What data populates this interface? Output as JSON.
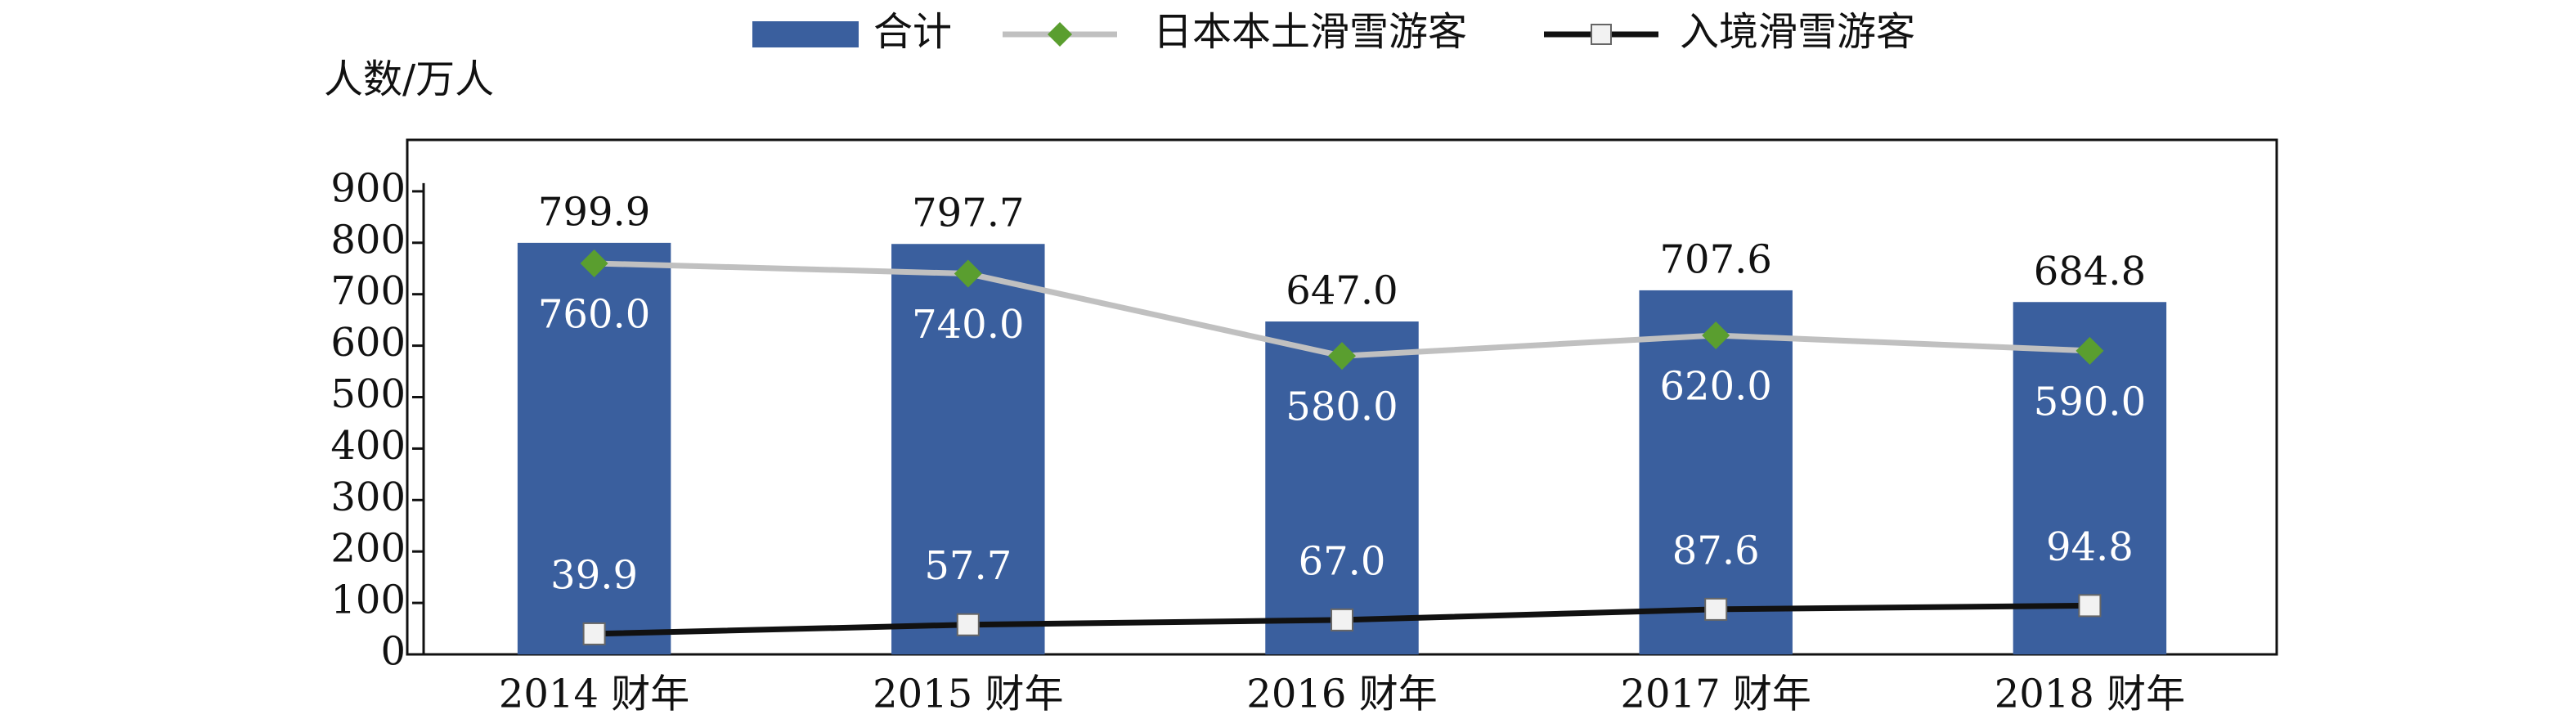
{
  "chart_data": {
    "type": "bar-line",
    "y_label": "人数/万人",
    "categories": [
      "2014 财年",
      "2015 财年",
      "2016 财年",
      "2017 财年",
      "2018 财年"
    ],
    "ylim": [
      0,
      1000
    ],
    "yticks": [
      0,
      100,
      200,
      300,
      400,
      500,
      600,
      700,
      800,
      900
    ],
    "legend": "top",
    "series": [
      {
        "name": "合计",
        "type": "bar",
        "color": "#3a5f9e",
        "values": [
          799.9,
          797.7,
          647.0,
          707.6,
          684.8
        ],
        "value_labels": [
          "799.9",
          "797.7",
          "647.0",
          "707.6",
          "684.8"
        ]
      },
      {
        "name": "日本本土滑雪游客",
        "type": "line",
        "color": "#c0c0c0",
        "marker": "diamond",
        "marker_color": "#5a9e2f",
        "values": [
          760.0,
          740.0,
          580.0,
          620.0,
          590.0
        ],
        "value_labels": [
          "760.0",
          "740.0",
          "580.0",
          "620.0",
          "590.0"
        ]
      },
      {
        "name": "入境滑雪游客",
        "type": "line",
        "color": "#111111",
        "marker": "square",
        "marker_color": "#f2f2f2",
        "values": [
          39.9,
          57.7,
          67.0,
          87.6,
          94.8
        ],
        "value_labels": [
          "39.9",
          "57.7",
          "67.0",
          "87.6",
          "94.8"
        ]
      }
    ]
  }
}
